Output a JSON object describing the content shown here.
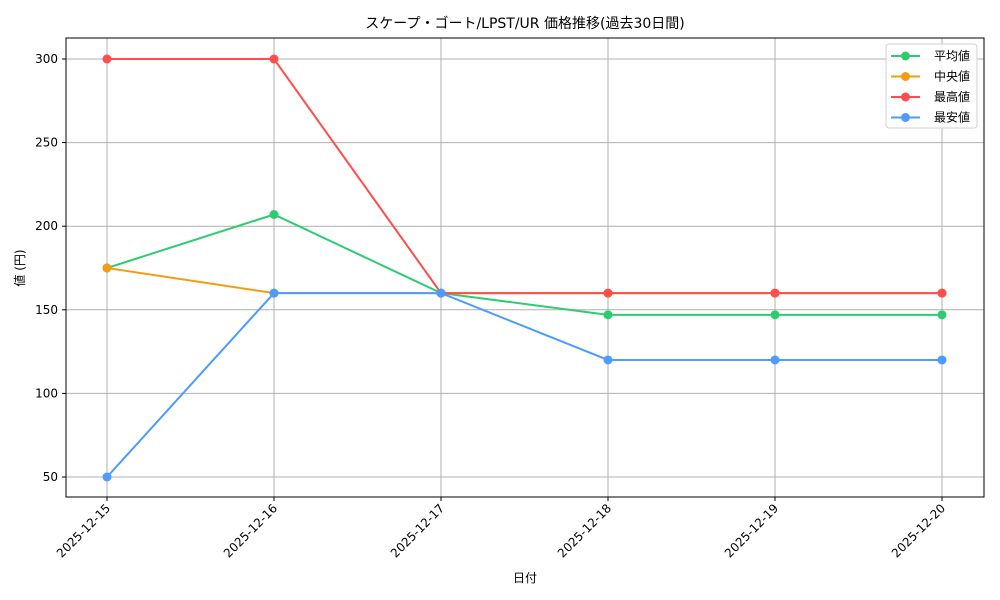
{
  "chart_data": {
    "type": "line",
    "title": "スケープ・ゴート/LPST/UR 価格推移(過去30日間)",
    "xlabel": "日付",
    "ylabel": "値 (円)",
    "x": [
      "2025-12-15",
      "2025-12-16",
      "2025-12-17",
      "2025-12-18",
      "2025-12-19",
      "2025-12-20"
    ],
    "series": [
      {
        "name": "平均値",
        "color": "#2ecc71",
        "values": [
          175,
          207,
          160,
          147,
          147,
          147
        ]
      },
      {
        "name": "中央値",
        "color": "#f39c12",
        "values": [
          175,
          160,
          160,
          160,
          160,
          160
        ]
      },
      {
        "name": "最高値",
        "color": "#ff4d4d",
        "values": [
          300,
          300,
          160,
          160,
          160,
          160
        ]
      },
      {
        "name": "最安値",
        "color": "#4d9bff",
        "values": [
          50,
          160,
          160,
          120,
          120,
          120
        ]
      }
    ],
    "yticks": [
      50,
      100,
      150,
      200,
      250,
      300
    ],
    "ylim": [
      37.5,
      312.5
    ],
    "grid": true,
    "legend_position": "upper right",
    "x_tick_rotation": 45
  }
}
